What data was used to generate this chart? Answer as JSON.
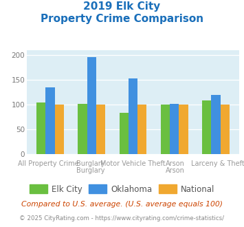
{
  "title_line1": "2019 Elk City",
  "title_line2": "Property Crime Comparison",
  "title_color": "#1a6fba",
  "categories": [
    "All Property Crime",
    "Burglary",
    "Motor Vehicle Theft",
    "Arson",
    "Larceny & Theft"
  ],
  "group_labels_top": [
    "",
    "Burglary",
    "",
    "Arson",
    ""
  ],
  "elk_city": [
    104,
    102,
    84,
    100,
    108
  ],
  "oklahoma": [
    135,
    196,
    153,
    101,
    119
  ],
  "national": [
    100,
    100,
    100,
    100,
    100
  ],
  "elk_city_color": "#6abf40",
  "oklahoma_color": "#4090e0",
  "national_color": "#f0a830",
  "bg_color": "#ddeef5",
  "ylim": [
    0,
    210
  ],
  "yticks": [
    0,
    50,
    100,
    150,
    200
  ],
  "bar_width": 0.22,
  "footnote1": "Compared to U.S. average. (U.S. average equals 100)",
  "footnote2": "© 2025 CityRating.com - https://www.cityrating.com/crime-statistics/",
  "footnote1_color": "#cc4400",
  "footnote2_color": "#888888"
}
